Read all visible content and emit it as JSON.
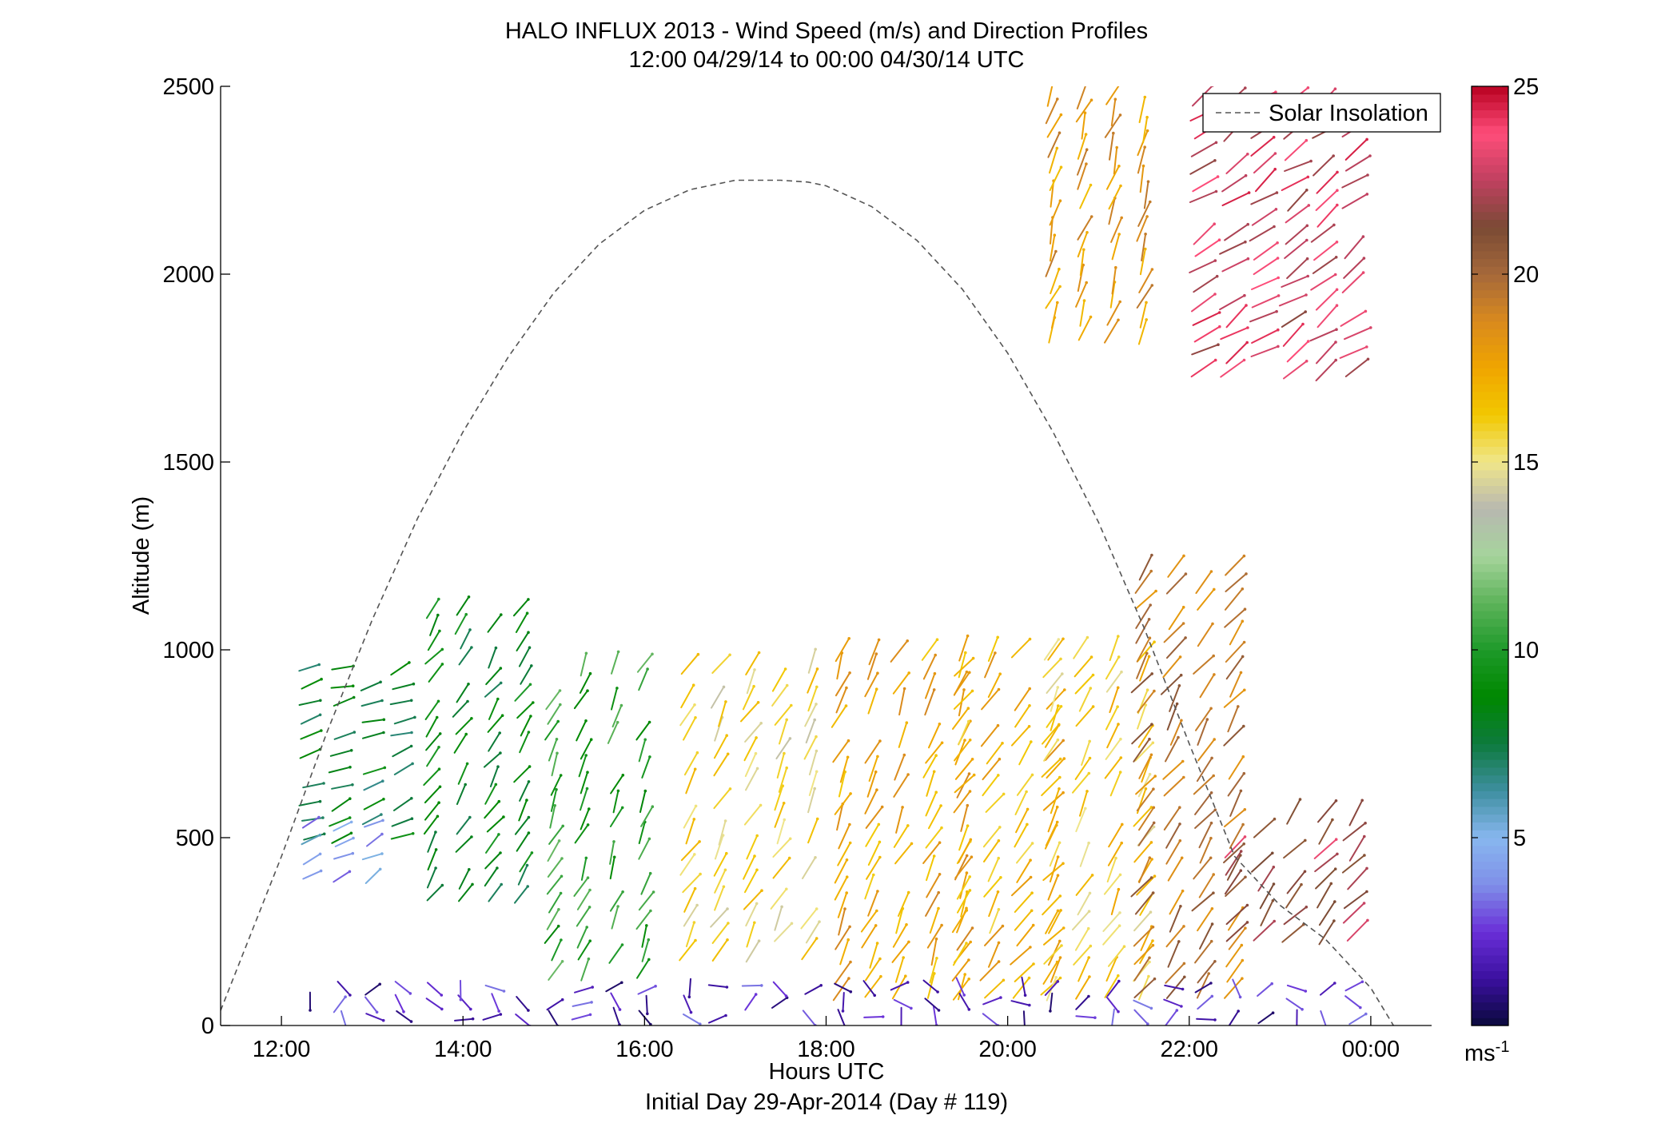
{
  "chart_data": {
    "type": "scatter",
    "title": "HALO INFLUX 2013 - Wind Speed (m/s) and Direction Profiles",
    "subtitle": "12:00 04/29/14 to 00:00 04/30/14  UTC",
    "xlabel": "Hours UTC",
    "xlabel2": "Initial Day 29-Apr-2014 (Day # 119)",
    "ylabel": "Altitude (m)",
    "xlim": [
      11.33,
      24.67
    ],
    "ylim": [
      0,
      2500
    ],
    "x_ticks": [
      12,
      14,
      16,
      18,
      20,
      22,
      24
    ],
    "x_tick_labels": [
      "12:00",
      "14:00",
      "16:00",
      "18:00",
      "20:00",
      "22:00",
      "00:00"
    ],
    "y_ticks": [
      0,
      500,
      1000,
      1500,
      2000,
      2500
    ],
    "y_tick_labels": [
      "0",
      "500",
      "1000",
      "1500",
      "2000",
      "2500"
    ],
    "legend": {
      "entries": [
        "Solar Insolation"
      ],
      "placement": "top-right"
    },
    "colorbar": {
      "range": [
        0,
        25
      ],
      "ticks": [
        5,
        10,
        15,
        20,
        25
      ],
      "tick_labels": [
        "5",
        "10",
        "15",
        "20",
        "25"
      ],
      "unit_label": "ms",
      "unit_exponent": "-1",
      "colormap": [
        "#0a0a3c",
        "#3b10a0",
        "#6a2fd8",
        "#7f8fe8",
        "#88b7ef",
        "#3e8fa0",
        "#0d7a3d",
        "#008800",
        "#1e9a2a",
        "#5db35a",
        "#a6d49c",
        "#b8b8b0",
        "#f0e68a",
        "#f2c800",
        "#f0a500",
        "#d98a1e",
        "#a5683a",
        "#7a4a35",
        "#c04060",
        "#ff4d7a",
        "#b80020"
      ]
    },
    "solar_insolation": {
      "style": "dashed",
      "color": "#555555",
      "x": [
        11.33,
        12.0,
        12.5,
        13.0,
        13.5,
        14.0,
        14.5,
        15.0,
        15.5,
        16.0,
        16.5,
        17.0,
        17.5,
        17.8,
        18.0,
        18.5,
        19.0,
        19.5,
        20.0,
        20.5,
        21.0,
        21.5,
        22.0,
        22.5,
        23.0,
        23.5,
        24.0,
        24.25
      ],
      "y": [
        40,
        450,
        780,
        1080,
        1350,
        1580,
        1780,
        1950,
        2080,
        2170,
        2225,
        2250,
        2250,
        2245,
        2235,
        2180,
        2090,
        1960,
        1790,
        1580,
        1340,
        1060,
        750,
        450,
        320,
        230,
        100,
        0
      ]
    },
    "barb_columns": {
      "note": "wind barbs at each profile time; color = speed (m/s), angle = flow direction (degrees clockwise from north toward which the arrow points)",
      "x": [
        12.33,
        12.67,
        13.0,
        13.33,
        13.67,
        14.0,
        14.33,
        14.67,
        15.0,
        15.33,
        15.67,
        16.0,
        16.5,
        16.83,
        17.17,
        17.5,
        17.83,
        18.17,
        18.5,
        18.83,
        19.17,
        19.5,
        19.83,
        20.17,
        20.5,
        20.83,
        21.17,
        21.5,
        21.83,
        22.17,
        22.5,
        22.83,
        23.17,
        23.5,
        23.83
      ]
    },
    "barb_layers": [
      {
        "x_from": 12.33,
        "x_to": 13.33,
        "alt_from": 500,
        "alt_to": 950,
        "speed": 8,
        "dir": 70
      },
      {
        "x_from": 12.33,
        "x_to": 13.0,
        "alt_from": 400,
        "alt_to": 550,
        "speed": 4.5,
        "dir": 60
      },
      {
        "x_from": 13.67,
        "x_to": 14.67,
        "alt_from": 350,
        "alt_to": 1150,
        "speed": 8.5,
        "dir": 35
      },
      {
        "x_from": 15.0,
        "x_to": 16.0,
        "alt_from": 150,
        "alt_to": 1000,
        "speed": 10,
        "dir": 25
      },
      {
        "x_from": 16.5,
        "x_to": 18.0,
        "alt_from": 200,
        "alt_to": 1000,
        "speed": 15.5,
        "dir": 30
      },
      {
        "x_from": 18.17,
        "x_to": 19.5,
        "alt_from": 100,
        "alt_to": 1000,
        "speed": 17.5,
        "dir": 25
      },
      {
        "x_from": 19.5,
        "x_to": 20.5,
        "alt_from": 100,
        "alt_to": 1000,
        "speed": 17,
        "dir": 35
      },
      {
        "x_from": 20.5,
        "x_to": 21.5,
        "alt_from": 100,
        "alt_to": 1000,
        "speed": 16,
        "dir": 30
      },
      {
        "x_from": 21.5,
        "x_to": 22.5,
        "alt_from": 100,
        "alt_to": 1250,
        "speed": 19.5,
        "dir": 35
      },
      {
        "x_from": 22.5,
        "x_to": 24.0,
        "alt_from": 250,
        "alt_to": 600,
        "speed": 22,
        "dir": 40
      },
      {
        "x_from": 20.5,
        "x_to": 21.5,
        "alt_from": 1850,
        "alt_to": 2500,
        "speed": 18,
        "dir": 20
      },
      {
        "x_from": 22.0,
        "x_to": 24.0,
        "alt_from": 1750,
        "alt_to": 2500,
        "speed": 23,
        "dir": 55
      },
      {
        "x_from": 12.33,
        "x_to": 24.0,
        "alt_from": 20,
        "alt_to": 100,
        "speed": 2,
        "dir": 110
      }
    ]
  }
}
